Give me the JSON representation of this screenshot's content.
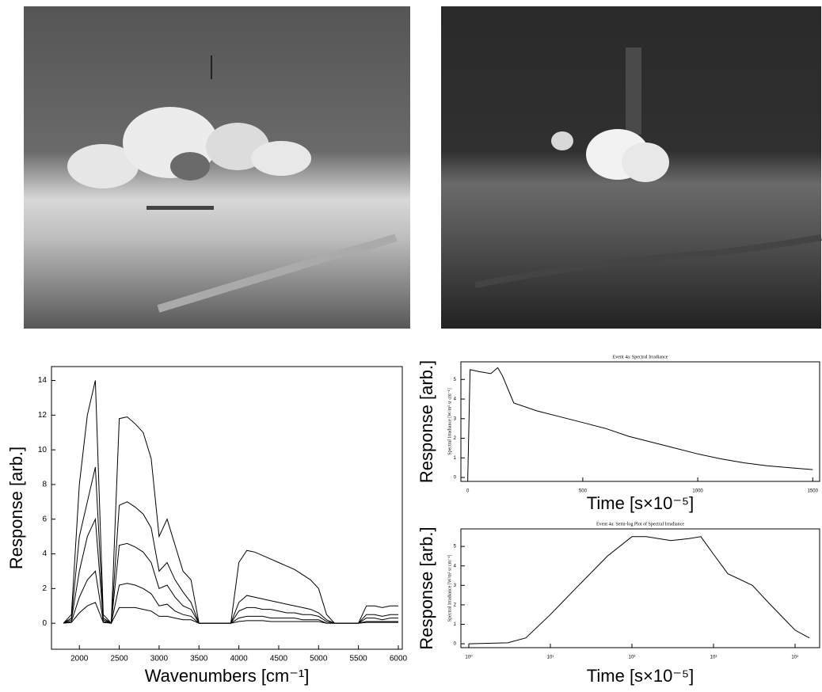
{
  "chart_data": [
    {
      "type": "line",
      "xlabel": "Wavenumbers [cm⁻¹]",
      "ylabel": "Response [arb.]",
      "x": [
        1800,
        1900,
        2000,
        2100,
        2200,
        2300,
        2400,
        2500,
        2600,
        2700,
        2800,
        2900,
        3000,
        3100,
        3200,
        3300,
        3400,
        3500,
        3600,
        3700,
        3800,
        3900,
        4000,
        4100,
        4200,
        4300,
        4400,
        4500,
        4600,
        4700,
        4800,
        4900,
        5000,
        5100,
        5200,
        5300,
        5400,
        5500,
        5600,
        5700,
        5800,
        5900,
        6000
      ],
      "series": [
        {
          "color": "#000000",
          "values": [
            0,
            0.5,
            8,
            12,
            14,
            0.5,
            0,
            11.8,
            11.9,
            11.5,
            11,
            9.5,
            5,
            6,
            4.5,
            3,
            2.5,
            0,
            0,
            0,
            0,
            0,
            3.5,
            4.2,
            4.1,
            3.9,
            3.7,
            3.5,
            3.3,
            3.1,
            2.8,
            2.5,
            2,
            0.5,
            0,
            0,
            0,
            0,
            1,
            1,
            0.9,
            1,
            1
          ]
        },
        {
          "color": "#000000",
          "values": [
            0,
            0.3,
            5,
            7,
            9,
            0.3,
            0,
            6.8,
            7,
            6.7,
            6.3,
            5.5,
            3,
            3.5,
            2.5,
            1.8,
            1.2,
            0,
            0,
            0,
            0,
            0,
            1.2,
            1.6,
            1.5,
            1.4,
            1.3,
            1.2,
            1.1,
            1,
            0.9,
            0.8,
            0.6,
            0.2,
            0,
            0,
            0,
            0,
            0.5,
            0.5,
            0.4,
            0.5,
            0.5
          ]
        },
        {
          "color": "#000000",
          "values": [
            0,
            0.2,
            3,
            5,
            6,
            0.2,
            0,
            4.5,
            4.6,
            4.4,
            4.1,
            3.5,
            2,
            2.2,
            1.5,
            1,
            0.8,
            0,
            0,
            0,
            0,
            0,
            0.7,
            0.9,
            0.9,
            0.8,
            0.8,
            0.7,
            0.6,
            0.6,
            0.5,
            0.5,
            0.4,
            0.1,
            0,
            0,
            0,
            0,
            0.3,
            0.3,
            0.2,
            0.3,
            0.3
          ]
        },
        {
          "color": "#000000",
          "values": [
            0,
            0.1,
            1.5,
            2.5,
            3,
            0.1,
            0,
            2.2,
            2.3,
            2.2,
            2,
            1.7,
            1,
            1.1,
            0.7,
            0.5,
            0.4,
            0,
            0,
            0,
            0,
            0,
            0.3,
            0.4,
            0.4,
            0.4,
            0.3,
            0.3,
            0.3,
            0.3,
            0.2,
            0.2,
            0.2,
            0,
            0,
            0,
            0,
            0,
            0.1,
            0.1,
            0.1,
            0.1,
            0.1
          ]
        },
        {
          "color": "#000000",
          "values": [
            0,
            0.05,
            0.6,
            1,
            1.2,
            0.05,
            0,
            0.9,
            0.9,
            0.9,
            0.8,
            0.7,
            0.4,
            0.4,
            0.3,
            0.2,
            0.2,
            0,
            0,
            0,
            0,
            0,
            0.1,
            0.15,
            0.15,
            0.15,
            0.1,
            0.1,
            0.1,
            0.1,
            0.1,
            0.1,
            0.1,
            0,
            0,
            0,
            0,
            0,
            0.05,
            0.05,
            0.05,
            0.05,
            0.05
          ]
        }
      ],
      "xlim": [
        1650,
        6050
      ],
      "xticks": [
        2000,
        2500,
        3000,
        3500,
        4000,
        4500,
        5000,
        5500,
        6000
      ],
      "ylim": [
        -1.5,
        14.8
      ],
      "yticks": [
        0,
        2,
        4,
        6,
        8,
        10,
        12,
        14
      ],
      "xlog": false
    },
    {
      "type": "line",
      "title": "Event 4a: Spectral Irradiance",
      "inner_ylabel": "Spectral Irradiance [W/m² sr cm⁻¹]",
      "xlabel": "Time [s×10⁻⁵]",
      "ylabel": "Response [arb.]",
      "color": "#000000",
      "x": [
        0,
        10,
        50,
        100,
        130,
        150,
        200,
        300,
        400,
        500,
        600,
        700,
        800,
        900,
        1000,
        1100,
        1200,
        1300,
        1400,
        1500
      ],
      "values": [
        0,
        5.5,
        5.4,
        5.3,
        5.6,
        5.2,
        3.8,
        3.4,
        3.1,
        2.8,
        2.5,
        2.1,
        1.8,
        1.5,
        1.2,
        0.95,
        0.75,
        0.6,
        0.5,
        0.4
      ],
      "xlim": [
        -30,
        1530
      ],
      "xticks": [
        0,
        500,
        1000,
        1500
      ],
      "ylim": [
        -0.2,
        5.9
      ],
      "yticks": [
        0,
        1,
        2,
        3,
        4,
        5
      ],
      "xlog": false
    },
    {
      "type": "line",
      "title": "Event 4a: Semi-log Plot of Spectral Irradiance",
      "inner_ylabel": "Spectral Irradiance [W/m² sr cm⁻¹]",
      "xlabel": "Time [s×10⁻⁵]",
      "ylabel": "Response [arb.]",
      "color": "#000000",
      "x": [
        1,
        3,
        5,
        10,
        20,
        50,
        100,
        150,
        300,
        500,
        700,
        1000,
        1500,
        3000,
        5000,
        10000,
        15000
      ],
      "values": [
        0,
        0.05,
        0.3,
        1.5,
        2.8,
        4.5,
        5.5,
        5.5,
        5.3,
        5.4,
        5.5,
        4.6,
        3.6,
        3,
        2,
        0.7,
        0.3
      ],
      "xlim": [
        0.8,
        20000
      ],
      "xticks": [
        {
          "value": 1,
          "label": "10⁰"
        },
        {
          "value": 10,
          "label": "10¹"
        },
        {
          "value": 100,
          "label": "10²"
        },
        {
          "value": 1000,
          "label": "10³"
        },
        {
          "value": 10000,
          "label": "10⁴"
        }
      ],
      "ylim": [
        -0.2,
        5.9
      ],
      "yticks": [
        0,
        1,
        2,
        3,
        4,
        5
      ],
      "xlog": true
    }
  ]
}
